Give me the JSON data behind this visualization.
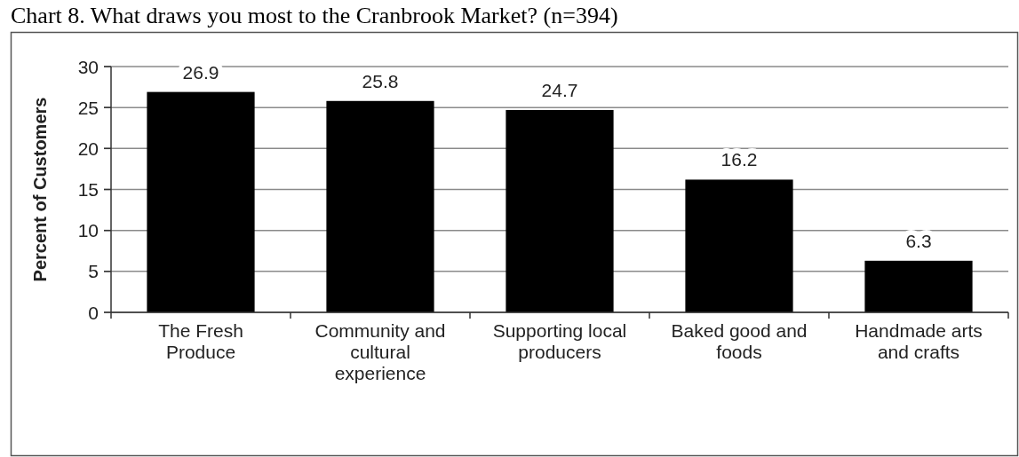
{
  "chart_data": {
    "type": "bar",
    "title": "Chart 8. What draws you most to the Cranbrook Market? (n=394)",
    "ylabel": "Percent of Customers",
    "categories": [
      "The Fresh Produce",
      "Community and cultural experience",
      "Supporting local producers",
      "Baked good and foods",
      "Handmade arts and crafts"
    ],
    "values": [
      26.9,
      25.8,
      24.7,
      16.2,
      6.3
    ],
    "color": "#000000",
    "ylim": [
      0,
      30
    ],
    "yticks": [
      0,
      5,
      10,
      15,
      20,
      25,
      30
    ],
    "grid": "y",
    "data_labels": true
  }
}
